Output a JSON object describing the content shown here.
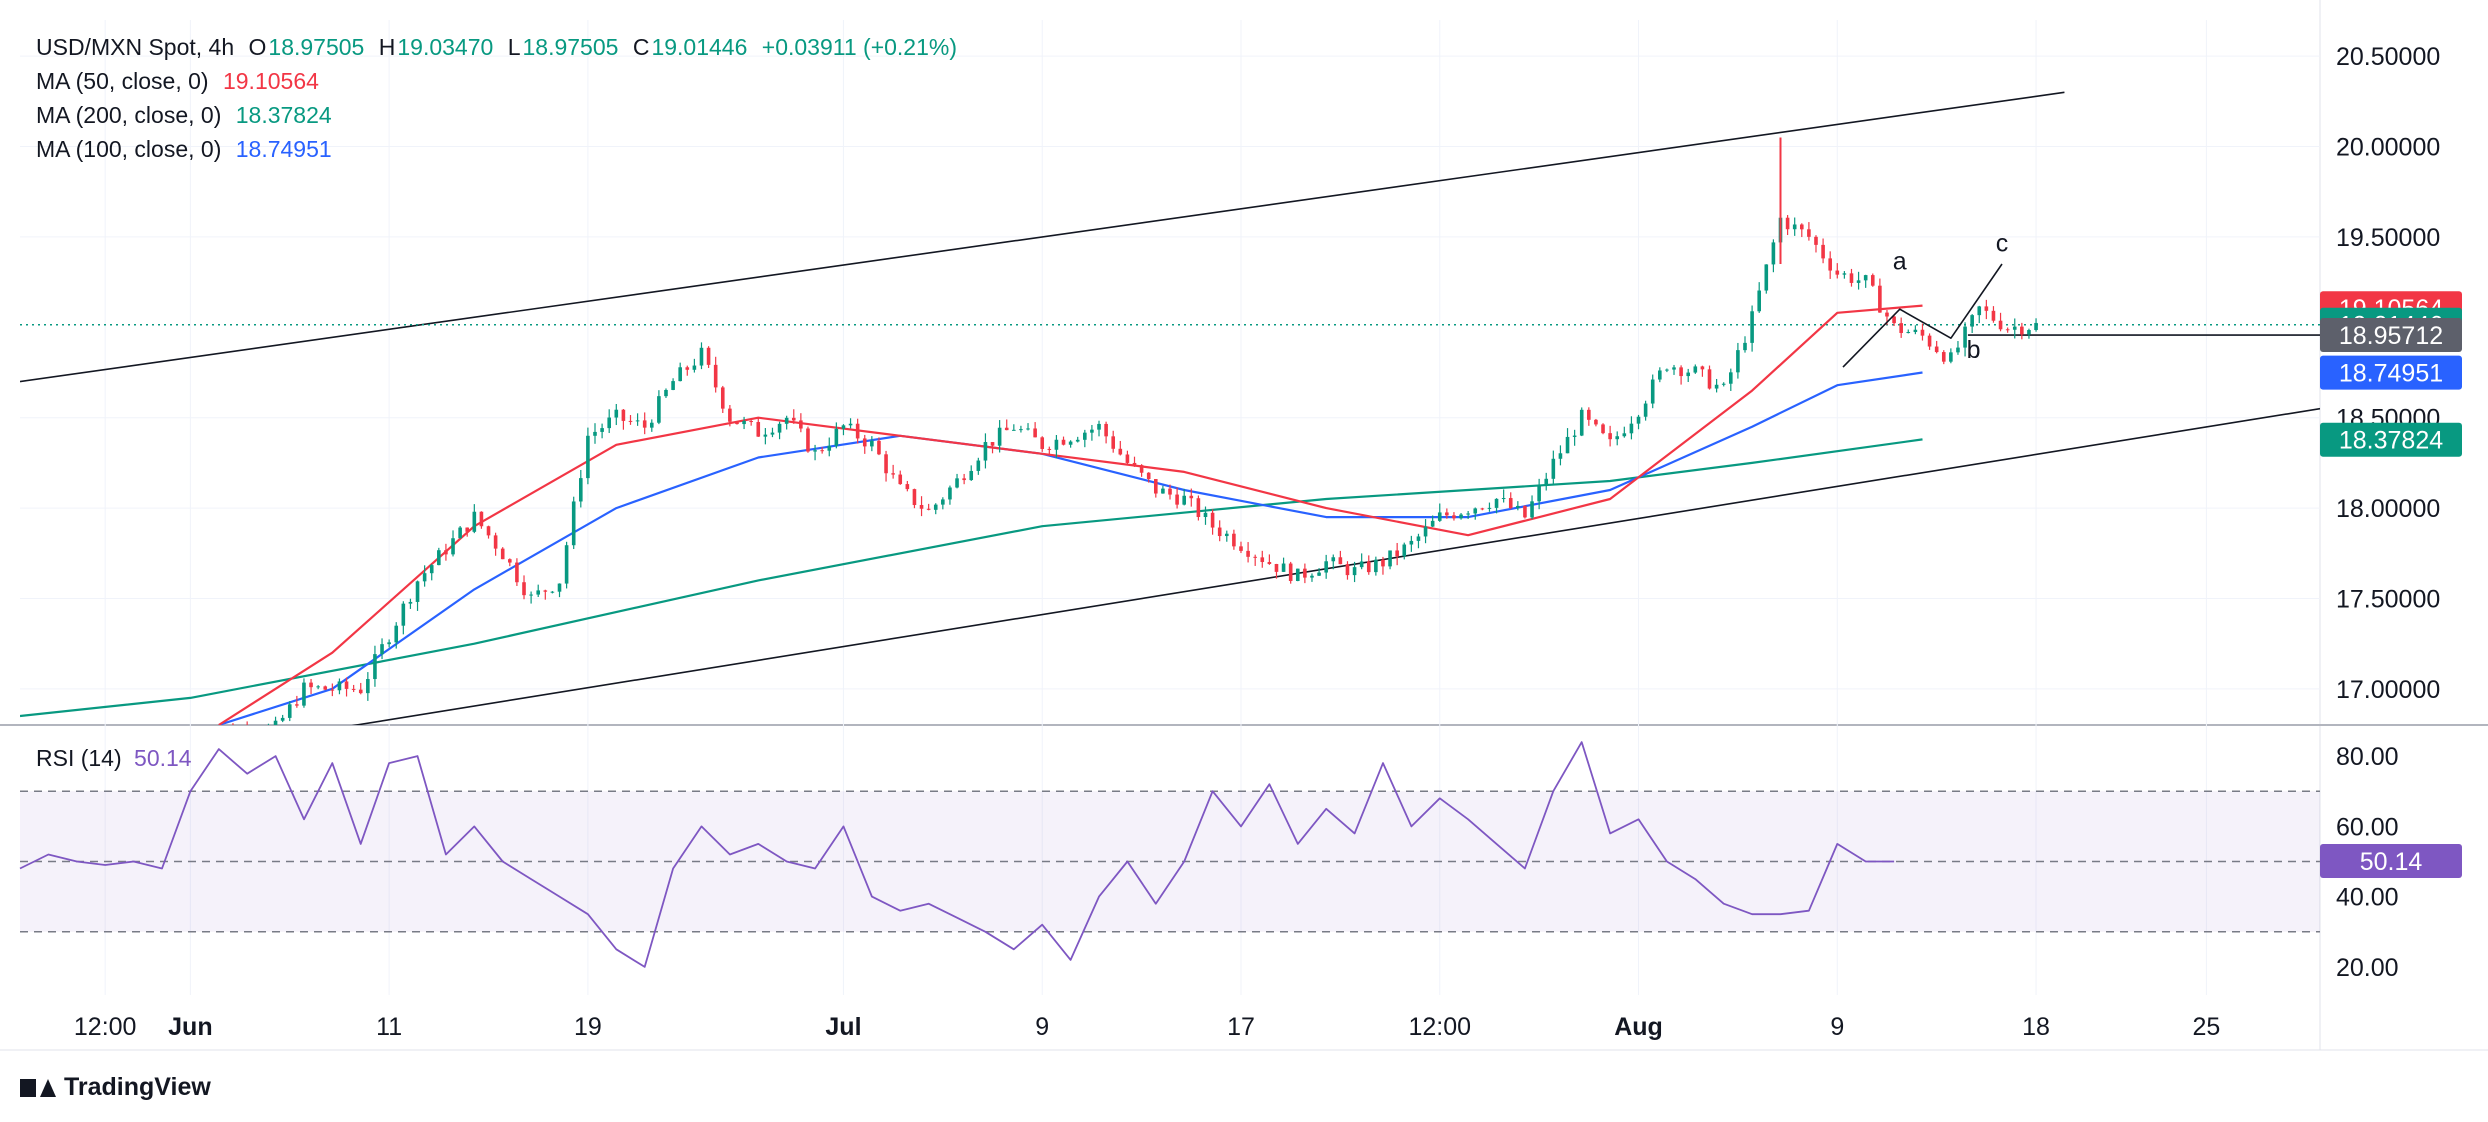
{
  "header": {
    "symbol": "USD/MXN Spot, 4h",
    "open_label": "O",
    "open": "18.97505",
    "high_label": "H",
    "high": "19.03470",
    "low_label": "L",
    "low": "18.97505",
    "close_label": "C",
    "close": "19.01446",
    "change": "+0.03911 (+0.21%)"
  },
  "ma_legend": [
    {
      "label": "MA (50, close, 0)",
      "value": "19.10564",
      "color": "#f23645"
    },
    {
      "label": "MA (200, close, 0)",
      "value": "18.37824",
      "color": "#089981"
    },
    {
      "label": "MA (100, close, 0)",
      "value": "18.74951",
      "color": "#2962ff"
    }
  ],
  "rsi_legend": {
    "label": "RSI (14)",
    "value": "50.14",
    "color": "#7e57c2"
  },
  "brand": "TradingView",
  "chart_data": {
    "type": "line",
    "main_pane": {
      "y_tick_labels": [
        "20.50000",
        "20.00000",
        "19.50000",
        "18.50000",
        "18.00000",
        "17.50000",
        "17.00000"
      ],
      "y_ticks": [
        20.5,
        20.0,
        19.5,
        18.5,
        18.0,
        17.5,
        17.0
      ],
      "ylim": [
        16.8,
        20.7
      ],
      "price_labels": [
        {
          "value": 19.10564,
          "text": "19.10564",
          "color": "#f23645"
        },
        {
          "value": 19.01446,
          "text": "19.01446",
          "color": "#089981"
        },
        {
          "value": 18.95712,
          "text": "18.95712",
          "color": "#5d606b"
        },
        {
          "value": 18.74951,
          "text": "18.74951",
          "color": "#2962ff"
        },
        {
          "value": 18.37824,
          "text": "18.37824",
          "color": "#089981"
        }
      ],
      "candles_up_color": "#089981",
      "candles_down_color": "#f23645",
      "close_path": [
        [
          0,
          16.75
        ],
        [
          3,
          16.78
        ],
        [
          4,
          17.0
        ],
        [
          6,
          17.0
        ],
        [
          8,
          17.6
        ],
        [
          10,
          17.95
        ],
        [
          11,
          17.75
        ],
        [
          12,
          17.5
        ],
        [
          13,
          17.6
        ],
        [
          14,
          18.4
        ],
        [
          15,
          18.5
        ],
        [
          16,
          18.45
        ],
        [
          17,
          18.7
        ],
        [
          18,
          18.85
        ],
        [
          19,
          18.5
        ],
        [
          20,
          18.42
        ],
        [
          21,
          18.5
        ],
        [
          22,
          18.3
        ],
        [
          23,
          18.45
        ],
        [
          24,
          18.35
        ],
        [
          25,
          18.1
        ],
        [
          26,
          17.98
        ],
        [
          27,
          18.15
        ],
        [
          28,
          18.35
        ],
        [
          29,
          18.45
        ],
        [
          30,
          18.35
        ],
        [
          31,
          18.4
        ],
        [
          32,
          18.45
        ],
        [
          33,
          18.25
        ],
        [
          34,
          18.1
        ],
        [
          35,
          18.05
        ],
        [
          36,
          17.9
        ],
        [
          37,
          17.8
        ],
        [
          38,
          17.7
        ],
        [
          39,
          17.62
        ],
        [
          40,
          17.7
        ],
        [
          41,
          17.65
        ],
        [
          42,
          17.7
        ],
        [
          43,
          17.8
        ],
        [
          44,
          17.95
        ],
        [
          45,
          18.0
        ],
        [
          46,
          18.05
        ],
        [
          47,
          17.95
        ],
        [
          48,
          18.25
        ],
        [
          49,
          18.5
        ],
        [
          50,
          18.35
        ],
        [
          51,
          18.55
        ],
        [
          52,
          18.8
        ],
        [
          53,
          18.75
        ],
        [
          54,
          18.65
        ],
        [
          55,
          19.05
        ],
        [
          56,
          19.6
        ],
        [
          57,
          19.5
        ],
        [
          58,
          19.3
        ],
        [
          59,
          19.25
        ],
        [
          60,
          19.0
        ],
        [
          61,
          18.95
        ],
        [
          62,
          18.82
        ],
        [
          63,
          19.1
        ],
        [
          64,
          19.0
        ],
        [
          65,
          19.01
        ]
      ],
      "x_tick_labels": [
        "12:00",
        "Jun",
        "11",
        "19",
        "Jul",
        "9",
        "17",
        "12:00",
        "Aug",
        "9",
        "18",
        "25"
      ],
      "x_tick_positions": [
        -3,
        0,
        7,
        14,
        23,
        30,
        37,
        44,
        51,
        58,
        65,
        71
      ],
      "xlim": [
        -6,
        75
      ],
      "ma50": [
        [
          1,
          16.8
        ],
        [
          5,
          17.2
        ],
        [
          10,
          17.9
        ],
        [
          15,
          18.35
        ],
        [
          20,
          18.5
        ],
        [
          25,
          18.4
        ],
        [
          30,
          18.3
        ],
        [
          35,
          18.2
        ],
        [
          40,
          18.0
        ],
        [
          45,
          17.85
        ],
        [
          50,
          18.05
        ],
        [
          55,
          18.65
        ],
        [
          58,
          19.08
        ],
        [
          61,
          19.12
        ]
      ],
      "ma100": [
        [
          1,
          16.8
        ],
        [
          5,
          17.0
        ],
        [
          10,
          17.55
        ],
        [
          15,
          18.0
        ],
        [
          20,
          18.28
        ],
        [
          25,
          18.4
        ],
        [
          30,
          18.3
        ],
        [
          35,
          18.1
        ],
        [
          40,
          17.95
        ],
        [
          45,
          17.95
        ],
        [
          50,
          18.1
        ],
        [
          55,
          18.45
        ],
        [
          58,
          18.68
        ],
        [
          61,
          18.75
        ]
      ],
      "ma200": [
        [
          -6,
          16.85
        ],
        [
          0,
          16.95
        ],
        [
          10,
          17.25
        ],
        [
          20,
          17.6
        ],
        [
          30,
          17.9
        ],
        [
          40,
          18.05
        ],
        [
          50,
          18.15
        ],
        [
          55,
          18.25
        ],
        [
          61,
          18.38
        ]
      ],
      "channel_upper": [
        [
          -6,
          18.7
        ],
        [
          66,
          20.3
        ]
      ],
      "channel_lower": [
        [
          -6,
          16.5
        ],
        [
          75,
          18.55
        ]
      ],
      "horizontal_line": 18.95712,
      "current_price_dotted": 19.01446,
      "wave_labels": [
        {
          "text": "a",
          "x": 60.2,
          "y": 19.32
        },
        {
          "text": "b",
          "x": 62.8,
          "y": 18.83
        },
        {
          "text": "c",
          "x": 63.8,
          "y": 19.42
        }
      ],
      "wave_path": [
        [
          58.2,
          18.78
        ],
        [
          60.2,
          19.1
        ],
        [
          62.0,
          18.94
        ],
        [
          63.8,
          19.35
        ]
      ]
    },
    "rsi_pane": {
      "y_tick_labels": [
        "80.00",
        "60.00",
        "40.00",
        "20.00"
      ],
      "y_ticks": [
        80,
        60,
        40,
        20
      ],
      "ylim": [
        12,
        88
      ],
      "bands": [
        70,
        50,
        30
      ],
      "current_value": 50.14,
      "current_text": "50.14",
      "color": "#7e57c2",
      "values": [
        [
          -6,
          48
        ],
        [
          -5,
          52
        ],
        [
          -4,
          50
        ],
        [
          -3,
          49
        ],
        [
          -2,
          50
        ],
        [
          -1,
          48
        ],
        [
          0,
          70
        ],
        [
          1,
          82
        ],
        [
          2,
          75
        ],
        [
          3,
          80
        ],
        [
          4,
          62
        ],
        [
          5,
          78
        ],
        [
          6,
          55
        ],
        [
          7,
          78
        ],
        [
          8,
          80
        ],
        [
          9,
          52
        ],
        [
          10,
          60
        ],
        [
          11,
          50
        ],
        [
          12,
          45
        ],
        [
          13,
          40
        ],
        [
          14,
          35
        ],
        [
          15,
          25
        ],
        [
          16,
          20
        ],
        [
          17,
          48
        ],
        [
          18,
          60
        ],
        [
          19,
          52
        ],
        [
          20,
          55
        ],
        [
          21,
          50
        ],
        [
          22,
          48
        ],
        [
          23,
          60
        ],
        [
          24,
          40
        ],
        [
          25,
          36
        ],
        [
          26,
          38
        ],
        [
          27,
          34
        ],
        [
          28,
          30
        ],
        [
          29,
          25
        ],
        [
          30,
          32
        ],
        [
          31,
          22
        ],
        [
          32,
          40
        ],
        [
          33,
          50
        ],
        [
          34,
          38
        ],
        [
          35,
          50
        ],
        [
          36,
          70
        ],
        [
          37,
          60
        ],
        [
          38,
          72
        ],
        [
          39,
          55
        ],
        [
          40,
          65
        ],
        [
          41,
          58
        ],
        [
          42,
          78
        ],
        [
          43,
          60
        ],
        [
          44,
          68
        ],
        [
          45,
          62
        ],
        [
          46,
          55
        ],
        [
          47,
          48
        ],
        [
          48,
          70
        ],
        [
          49,
          84
        ],
        [
          50,
          58
        ],
        [
          51,
          62
        ],
        [
          52,
          50
        ],
        [
          53,
          45
        ],
        [
          54,
          38
        ],
        [
          55,
          35
        ],
        [
          56,
          35
        ],
        [
          57,
          36
        ],
        [
          58,
          55
        ],
        [
          59,
          50
        ],
        [
          60,
          50
        ]
      ]
    }
  }
}
